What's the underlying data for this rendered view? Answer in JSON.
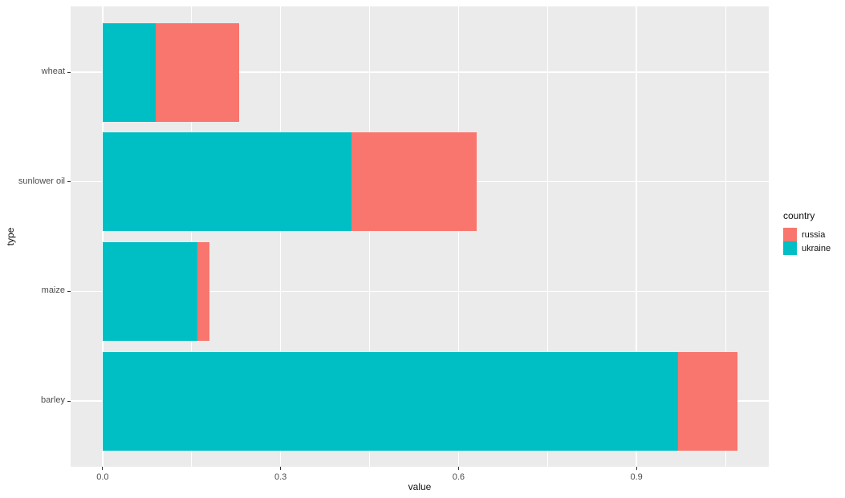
{
  "chart_data": {
    "type": "bar",
    "orientation": "horizontal",
    "stacked": true,
    "title": "",
    "xlabel": "value",
    "ylabel": "type",
    "categories": [
      "wheat",
      "sunlower oil",
      "maize",
      "barley"
    ],
    "series": [
      {
        "name": "ukraine",
        "color": "#00BFC4",
        "values": [
          0.09,
          0.42,
          0.16,
          0.97
        ]
      },
      {
        "name": "russia",
        "color": "#F8766D",
        "values": [
          0.14,
          0.21,
          0.02,
          0.1
        ]
      }
    ],
    "x_ticks": [
      "0.0",
      "0.3",
      "0.6",
      "0.9"
    ],
    "x_tick_values": [
      0,
      0.3,
      0.6,
      0.9
    ],
    "x_minor_tick_values": [
      0.15,
      0.45,
      0.75,
      1.05
    ],
    "xlim": [
      -0.054,
      1.123
    ],
    "grid": true,
    "legend": {
      "position": "right",
      "title": "country",
      "entries": [
        {
          "label": "russia",
          "color": "#F8766D"
        },
        {
          "label": "ukraine",
          "color": "#00BFC4"
        }
      ]
    },
    "colors": {
      "figure_background": "#FFFFFF",
      "panel_background": "#EBEBEB",
      "gridline": "#FFFFFF",
      "tick_label": "#4D4D4D",
      "axis_title": "#111111"
    }
  }
}
